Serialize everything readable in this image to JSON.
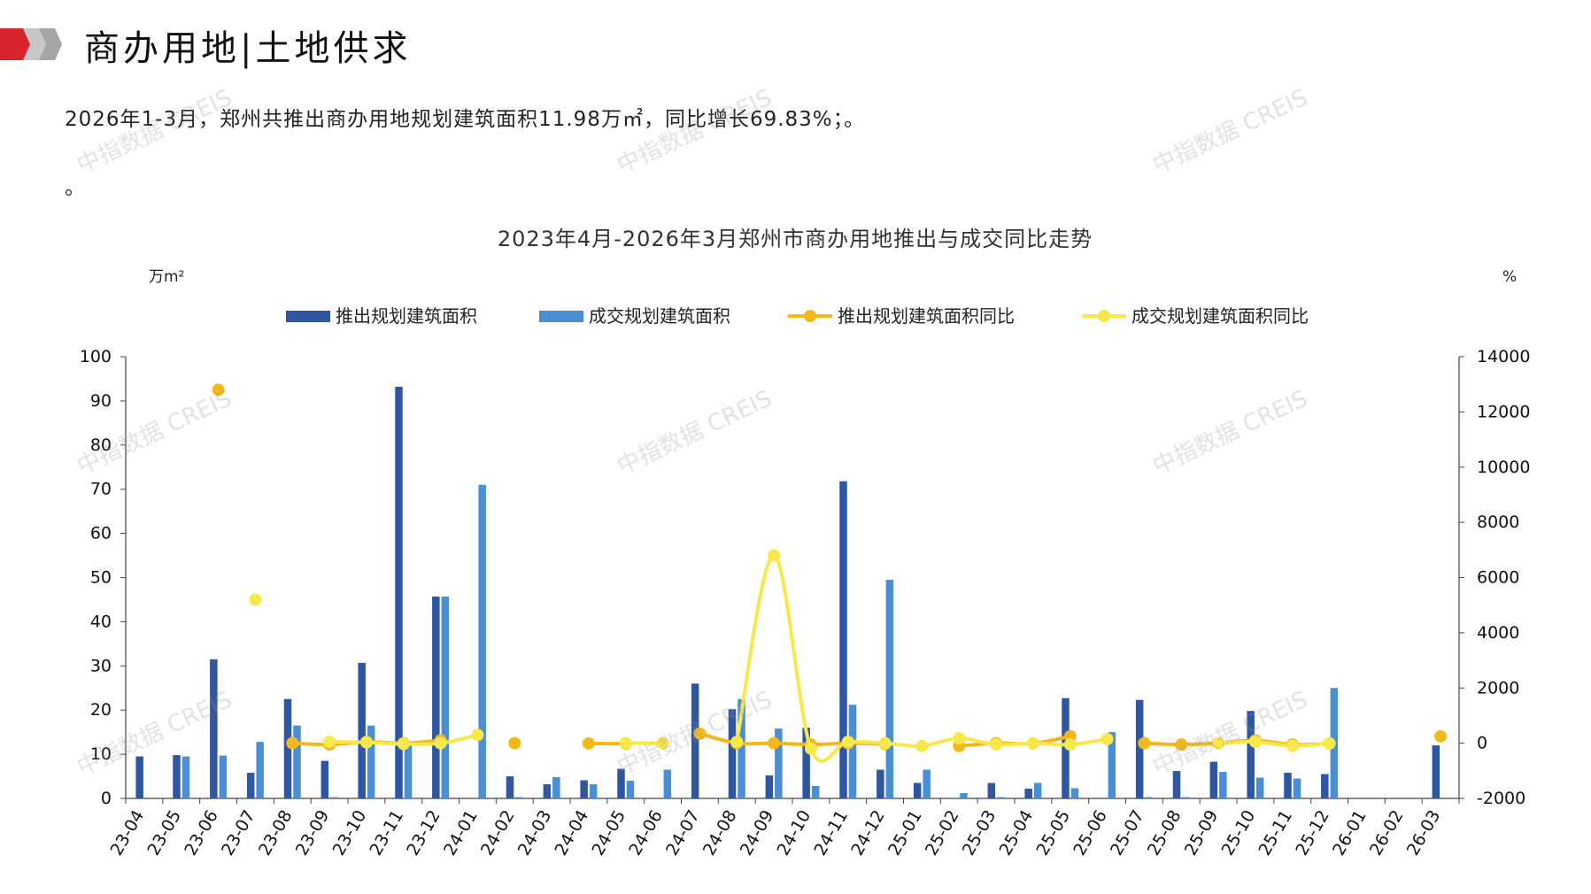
{
  "header": {
    "title": "商办用地|土地供求",
    "summary": "2026年1-3月，郑州共推出商办用地规划建筑面积11.98万㎡，同比增长69.83%；。",
    "summary_2": "。"
  },
  "watermark_text": "中指数据 CREIS",
  "colors": {
    "supply_bar": "#2f56a0",
    "deal_bar": "#4a8fd4",
    "supply_yoy": "#f3b81b",
    "deal_yoy": "#f7e94a",
    "logo_red": "#d9232d",
    "logo_grey": "#bdbdbd"
  },
  "chart_data": {
    "type": "bar",
    "title": "2023年4月-2026年3月郑州市商办用地推出与成交同比走势",
    "y_left_unit": "万m²",
    "y_right_unit": "%",
    "ylim_left": [
      0,
      100
    ],
    "ylim_right": [
      -2000,
      14000
    ],
    "y_left_ticks": [
      "0",
      "10",
      "20",
      "30",
      "40",
      "50",
      "60",
      "70",
      "80",
      "90",
      "100"
    ],
    "y_right_ticks": [
      "-2000",
      "0",
      "2000",
      "4000",
      "6000",
      "8000",
      "10000",
      "12000",
      "14000"
    ],
    "legend_position": "top",
    "categories": [
      "23-04",
      "23-05",
      "23-06",
      "23-07",
      "23-08",
      "23-09",
      "23-10",
      "23-11",
      "23-12",
      "24-01",
      "24-02",
      "24-03",
      "24-04",
      "24-05",
      "24-06",
      "24-07",
      "24-08",
      "24-09",
      "24-10",
      "24-11",
      "24-12",
      "25-01",
      "25-02",
      "25-03",
      "25-04",
      "25-05",
      "25-06",
      "25-07",
      "25-08",
      "25-09",
      "25-10",
      "25-11",
      "25-12",
      "26-01",
      "26-02",
      "26-03"
    ],
    "series": [
      {
        "name": "推出规划建筑面积",
        "type": "bar",
        "axis": "left",
        "values": [
          9.5,
          9.8,
          31.5,
          5.8,
          22.5,
          8.5,
          30.7,
          93.2,
          45.7,
          0,
          5,
          3.2,
          4.1,
          6.7,
          0,
          26,
          20.2,
          5.2,
          16,
          71.8,
          6.5,
          3.5,
          0,
          3.5,
          2.2,
          22.7,
          0,
          22.3,
          6.2,
          8.3,
          19.8,
          5.8,
          5.5,
          0,
          0,
          12
        ]
      },
      {
        "name": "成交规划建筑面积",
        "type": "bar",
        "axis": "left",
        "values": [
          0,
          9.5,
          9.7,
          12.8,
          16.5,
          0.3,
          16.5,
          12.5,
          45.7,
          71,
          0.3,
          4.8,
          3.2,
          4,
          6.5,
          0,
          22.5,
          15.8,
          2.8,
          21.2,
          49.5,
          6.5,
          1.2,
          0.3,
          3.5,
          2.3,
          15,
          0.3,
          0.3,
          6,
          4.7,
          4.5,
          25,
          0,
          0,
          0
        ]
      },
      {
        "name": "推出规划建筑面积同比",
        "type": "line",
        "axis": "right",
        "values": [
          null,
          null,
          12800,
          null,
          0,
          -50,
          50,
          0,
          100,
          null,
          0,
          null,
          -10,
          -20,
          null,
          350,
          0,
          0,
          -50,
          0,
          -30,
          null,
          -100,
          0,
          -10,
          250,
          null,
          0,
          -50,
          0,
          100,
          -50,
          -10,
          null,
          null,
          250
        ]
      },
      {
        "name": "成交规划建筑面积同比",
        "type": "line",
        "axis": "right",
        "values": [
          null,
          null,
          null,
          5200,
          null,
          50,
          30,
          -30,
          0,
          300,
          null,
          null,
          null,
          0,
          0,
          null,
          50,
          6800,
          -200,
          50,
          0,
          -100,
          180,
          -50,
          0,
          -50,
          150,
          null,
          null,
          -10,
          50,
          -100,
          -10,
          null,
          null,
          null
        ]
      }
    ]
  }
}
